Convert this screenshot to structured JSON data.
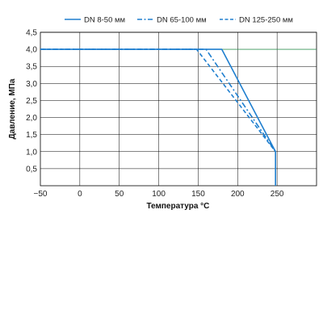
{
  "chart_data": {
    "type": "line",
    "xlabel": "Температура °С",
    "ylabel": "Давление, МПа",
    "xlim": [
      -50,
      300
    ],
    "ylim": [
      0,
      4.5
    ],
    "x_ticks": [
      "−50",
      "0",
      "50",
      "100",
      "150",
      "200",
      "250"
    ],
    "y_ticks": [
      "0,5",
      "1,0",
      "1,5",
      "2,0",
      "2,5",
      "3,0",
      "3,5",
      "4,0",
      "4,5"
    ],
    "grid": true,
    "legend_position": "top",
    "colors": {
      "series": "#1f7fcf",
      "axis": "#000000",
      "grid": "#000000",
      "baseline": "#2e9a55"
    },
    "series": [
      {
        "name": "DN 8-50 мм",
        "style": "solid",
        "x": [
          -50,
          180,
          248,
          248
        ],
        "y": [
          4.0,
          4.0,
          1.0,
          0.0
        ]
      },
      {
        "name": "DN 65-100 мм",
        "style": "dashdot",
        "x": [
          -50,
          160,
          248
        ],
        "y": [
          4.0,
          4.0,
          1.0
        ]
      },
      {
        "name": "DN 125-250 мм",
        "style": "dashed",
        "x": [
          -50,
          148,
          248
        ],
        "y": [
          4.0,
          4.0,
          1.0
        ]
      }
    ]
  }
}
